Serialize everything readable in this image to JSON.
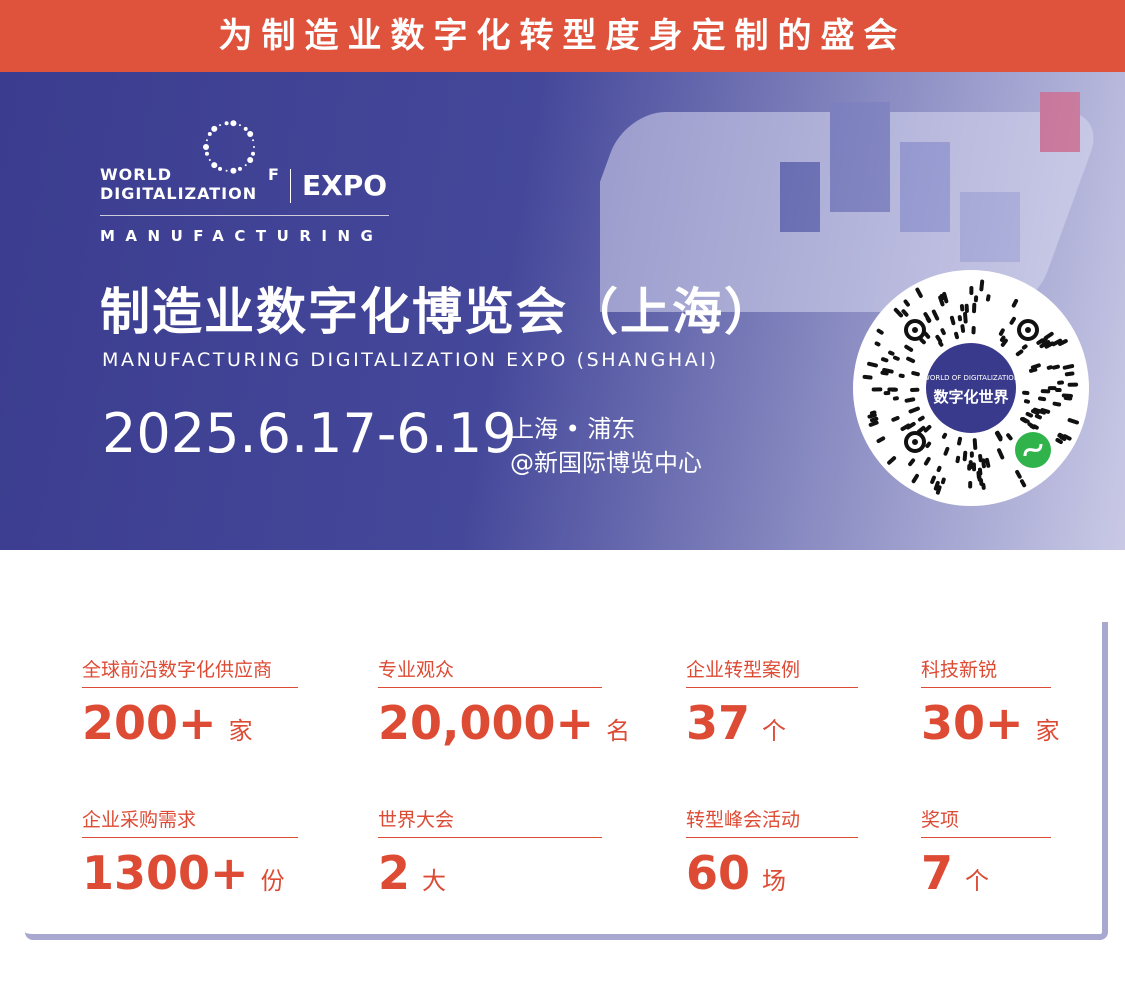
{
  "header": {
    "slogan": "为制造业数字化转型度身定制的盛会"
  },
  "logo": {
    "world": "WORLD\nDIGITALIZATION",
    "of": "F",
    "expo": "EXPO",
    "manufacturing": "MANUFACTURING"
  },
  "banner": {
    "title": "制造业数字化博览会（上海）",
    "subtitle": "MANUFACTURING DIGITALIZATION EXPO (SHANGHAI)",
    "date": "2025.6.17-6.19",
    "venue_line1": "上海 • 浦东",
    "venue_line2": "@新国际博览中心"
  },
  "qr": {
    "center_text_en": "WORLD OF DIGITALIZATION",
    "center_text_cn": "数字化世界",
    "icon": "mini-program-icon",
    "color": "#3a3a8c"
  },
  "colors": {
    "accent": "#df533d",
    "banner": "#3b3c8f",
    "card_shadow": "#a8a7cf"
  },
  "stats": [
    {
      "label": "全球前沿数字化供应商",
      "value": "200+",
      "unit": "家"
    },
    {
      "label": "专业观众",
      "value": "20,000+",
      "unit": "名"
    },
    {
      "label": "企业转型案例",
      "value": "37",
      "unit": "个"
    },
    {
      "label": "科技新锐",
      "value": "30+",
      "unit": "家"
    },
    {
      "label": "企业采购需求",
      "value": "1300+",
      "unit": "份"
    },
    {
      "label": "世界大会",
      "value": "2",
      "unit": "大"
    },
    {
      "label": "转型峰会活动",
      "value": "60",
      "unit": "场"
    },
    {
      "label": "奖项",
      "value": "7",
      "unit": "个"
    }
  ]
}
